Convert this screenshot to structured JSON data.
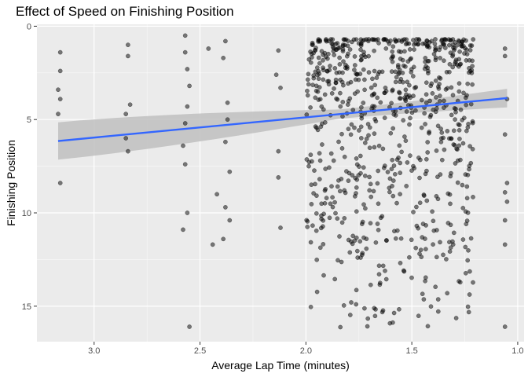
{
  "chart_data": {
    "type": "scatter",
    "title": "Effect of Speed on Finishing Position",
    "xlabel": "Average Lap Time (minutes)",
    "ylabel": "Finishing Position",
    "x_reversed": true,
    "y_reversed": true,
    "xlim": [
      3.27,
      0.97
    ],
    "ylim": [
      -0.1,
      16.9
    ],
    "x_ticks": [
      3.0,
      2.5,
      2.0,
      1.5,
      1.0
    ],
    "x_tick_labels": [
      "3.0",
      "2.5",
      "2.0",
      "1.5",
      "1.0"
    ],
    "y_ticks": [
      0,
      5,
      10,
      15
    ],
    "y_tick_labels": [
      "0",
      "5",
      "10",
      "15"
    ],
    "grid": true,
    "colors": {
      "panel_bg": "#ebebeb",
      "grid_major": "#ffffff",
      "points": "#000000",
      "trend_line": "#3366ff",
      "confidence_band": "#bfbfbf"
    },
    "series": [
      {
        "kind": "points",
        "point_alpha": 0.5,
        "x": [
          3.16,
          3.16,
          3.17,
          3.16,
          3.17,
          3.16,
          2.84,
          2.84,
          2.83,
          2.85,
          2.85,
          2.84,
          2.57,
          2.57,
          2.56,
          2.55,
          2.56,
          2.57,
          2.57,
          2.56,
          2.58,
          2.55,
          2.58,
          2.38,
          2.39,
          2.37,
          2.37,
          2.38,
          2.36,
          2.38,
          2.36,
          2.39,
          2.42,
          2.44,
          2.46,
          2.13,
          2.14,
          2.12,
          2.13,
          2.13,
          2.12,
          1.06,
          1.06,
          1.05,
          1.06,
          1.05,
          1.06,
          1.06,
          1.06,
          1.05,
          1.06
        ],
        "y": [
          1.4,
          2.4,
          3.4,
          3.9,
          4.7,
          8.4,
          1.0,
          1.6,
          4.2,
          4.7,
          6.0,
          6.7,
          0.5,
          1.4,
          2.3,
          3.2,
          4.3,
          5.2,
          7.4,
          10.0,
          10.9,
          16.1,
          6.4,
          0.8,
          1.7,
          4.1,
          5.0,
          6.2,
          7.8,
          9.7,
          10.4,
          11.4,
          9.0,
          11.7,
          1.2,
          1.3,
          2.6,
          3.3,
          6.7,
          8.1,
          10.8,
          1.2,
          5.8,
          8.4,
          8.9,
          9.4,
          10.4,
          11.7,
          16.1,
          3.9,
          1.6
        ],
        "density_note": "",
        "cluster": {
          "x_range": [
            1.21,
            2.0
          ],
          "y_range": [
            0.7,
            16.2
          ],
          "count": 780
        }
      },
      {
        "kind": "linear_fit",
        "x": [
          3.17,
          1.05
        ],
        "y": [
          6.15,
          3.85
        ],
        "ci_lower": [
          5.15,
          3.35
        ],
        "ci_upper": [
          7.15,
          4.35
        ],
        "ci_mid_x": 1.85,
        "ci_mid_halfwidth": 0.25
      }
    ]
  }
}
